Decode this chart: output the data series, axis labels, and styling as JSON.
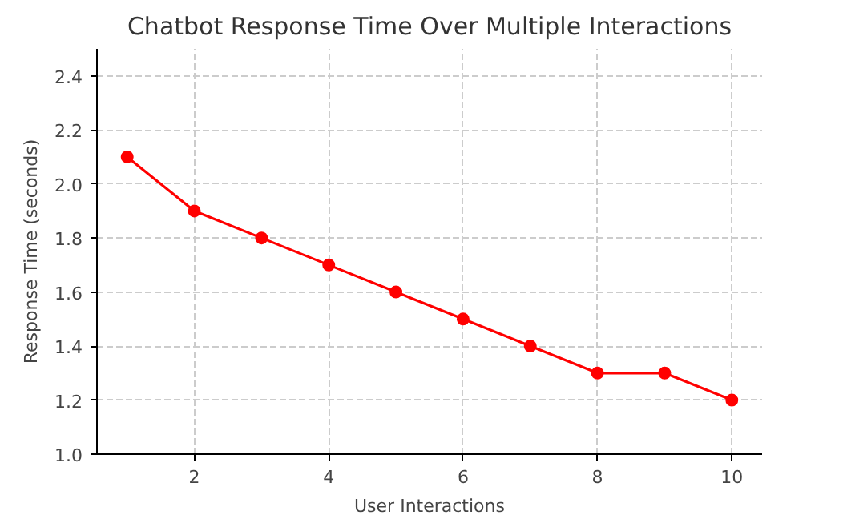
{
  "chart_data": {
    "type": "line",
    "title": "Chatbot Response Time Over Multiple Interactions",
    "xlabel": "User Interactions",
    "ylabel": "Response Time (seconds)",
    "x": [
      1,
      2,
      3,
      4,
      5,
      6,
      7,
      8,
      9,
      10
    ],
    "series": [
      {
        "color": "#ff0000",
        "values": [
          2.1,
          1.9,
          1.8,
          1.7,
          1.6,
          1.5,
          1.4,
          1.3,
          1.3,
          1.2
        ]
      }
    ],
    "xlim": [
      0.55,
      10.45
    ],
    "ylim": [
      1.0,
      2.5
    ],
    "xticks": [
      2,
      4,
      6,
      8,
      10
    ],
    "yticks": [
      {
        "value": 1.0,
        "label": "1.0"
      },
      {
        "value": 1.2,
        "label": "1.2"
      },
      {
        "value": 1.4,
        "label": "1.4"
      },
      {
        "value": 1.6,
        "label": "1.6"
      },
      {
        "value": 1.8,
        "label": "1.8"
      },
      {
        "value": 2.0,
        "label": "2.0"
      },
      {
        "value": 2.2,
        "label": "2.2"
      },
      {
        "value": 2.4,
        "label": "2.4"
      }
    ],
    "grid": true,
    "marker": "circle",
    "line_style": "solid"
  }
}
